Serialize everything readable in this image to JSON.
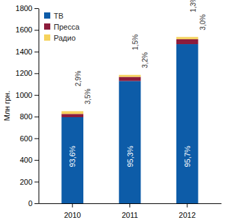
{
  "chart_data": {
    "type": "bar",
    "stacked": true,
    "y_label": "Млн грн.",
    "categories": [
      "2010",
      "2011",
      "2012"
    ],
    "series": [
      {
        "name": "ТВ",
        "color": "#0d5ca8",
        "values": [
          795,
          1129,
          1469
        ],
        "share_labels": [
          "93,6%",
          "95,3%",
          "95,7%"
        ]
      },
      {
        "name": "Пресса",
        "color": "#8c1c3c",
        "values": [
          30,
          38,
          46
        ],
        "share_labels": [
          "3,5%",
          "3,2%",
          "3,0%"
        ]
      },
      {
        "name": "Радио",
        "color": "#f5d25c",
        "values": [
          25,
          18,
          20
        ],
        "share_labels": [
          "2,9%",
          "1,5%",
          "1,3%"
        ]
      }
    ],
    "ylim": [
      0,
      1800
    ],
    "yticks": [
      0,
      200,
      400,
      600,
      800,
      1000,
      1200,
      1400,
      1600,
      1800
    ],
    "legend": "top-left",
    "grid": false
  }
}
